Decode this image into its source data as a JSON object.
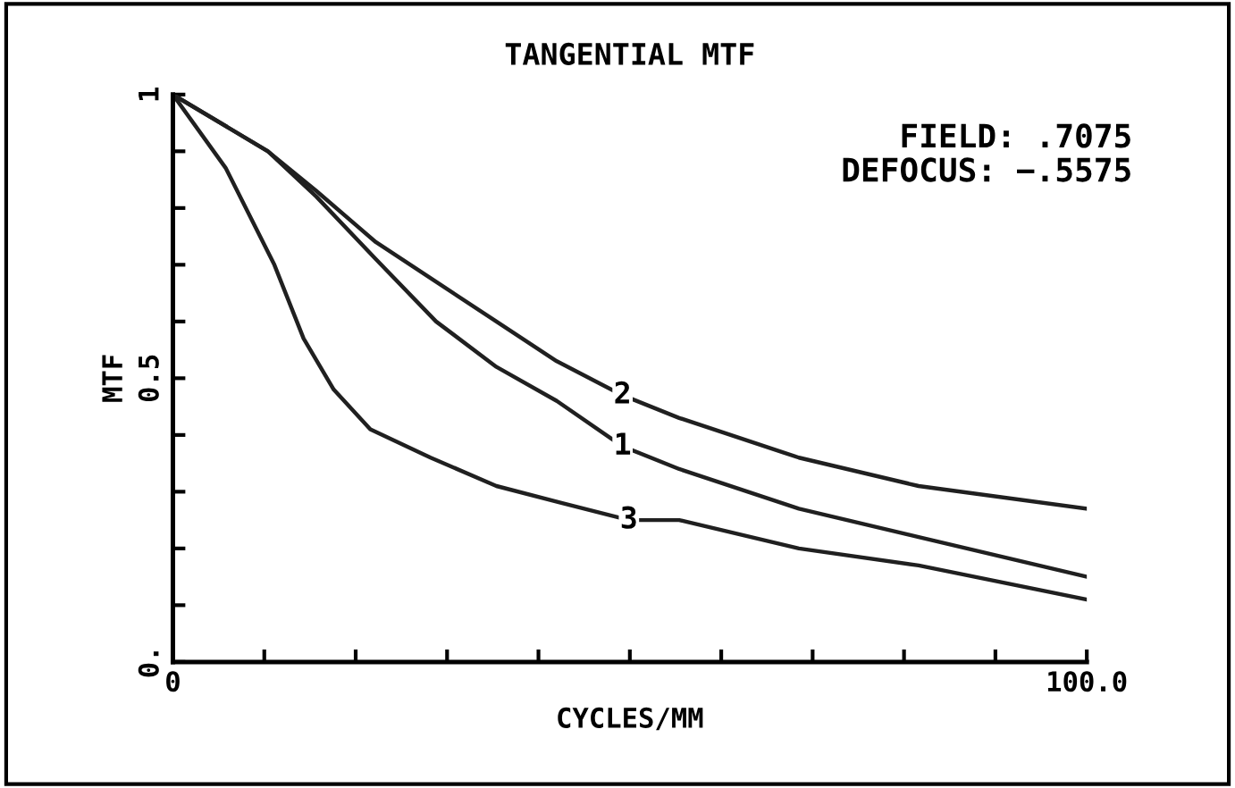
{
  "chart_data": {
    "type": "line",
    "title": "TANGENTIAL MTF",
    "xlabel": "CYCLES/MM",
    "ylabel": "MTF",
    "annotations": [
      "FIELD: .7075",
      "DEFOCUS: −.5575"
    ],
    "xlim": [
      0,
      100
    ],
    "ylim": [
      0,
      1
    ],
    "xticks": [
      {
        "value": 0,
        "label": "0"
      },
      {
        "value": 10,
        "label": null
      },
      {
        "value": 20,
        "label": null
      },
      {
        "value": 30,
        "label": null
      },
      {
        "value": 40,
        "label": null
      },
      {
        "value": 50,
        "label": null
      },
      {
        "value": 60,
        "label": null
      },
      {
        "value": 70,
        "label": null
      },
      {
        "value": 80,
        "label": null
      },
      {
        "value": 90,
        "label": null
      },
      {
        "value": 100,
        "label": "100.0"
      }
    ],
    "yticks": [
      {
        "value": 0,
        "label": "0."
      },
      {
        "value": 0.1,
        "label": null
      },
      {
        "value": 0.2,
        "label": null
      },
      {
        "value": 0.3,
        "label": null
      },
      {
        "value": 0.4,
        "label": null
      },
      {
        "value": 0.5,
        "label": "0.5"
      },
      {
        "value": 0.6,
        "label": null
      },
      {
        "value": 0.7,
        "label": null
      },
      {
        "value": 0.8,
        "label": null
      },
      {
        "value": 0.9,
        "label": null
      },
      {
        "value": 1,
        "label": "1"
      }
    ],
    "grid": false,
    "marker": "none",
    "line_style": "solid",
    "series": [
      {
        "name": "2",
        "color": "#202020",
        "x": [
          0,
          10.4,
          15.7,
          22.2,
          28.8,
          35.4,
          42,
          49.2,
          55.4,
          68.5,
          81.6,
          100
        ],
        "values": [
          1,
          0.9,
          0.83,
          0.74,
          0.67,
          0.6,
          0.53,
          0.47,
          0.43,
          0.36,
          0.31,
          0.27
        ]
      },
      {
        "name": "1",
        "color": "#202020",
        "x": [
          0,
          10.4,
          15.7,
          22.2,
          28.8,
          35.4,
          42,
          49.2,
          55.4,
          68.5,
          81.6,
          100
        ],
        "values": [
          1,
          0.9,
          0.82,
          0.71,
          0.6,
          0.52,
          0.46,
          0.38,
          0.34,
          0.27,
          0.22,
          0.15
        ]
      },
      {
        "name": "3",
        "color": "#202020",
        "x": [
          0,
          5.8,
          11.1,
          14.3,
          17.6,
          21.6,
          28.2,
          35.4,
          42.6,
          49.9,
          55.4,
          68.5,
          81.6,
          100
        ],
        "values": [
          1,
          0.87,
          0.7,
          0.57,
          0.48,
          0.41,
          0.36,
          0.31,
          0.28,
          0.25,
          0.25,
          0.2,
          0.17,
          0.11
        ]
      }
    ]
  }
}
